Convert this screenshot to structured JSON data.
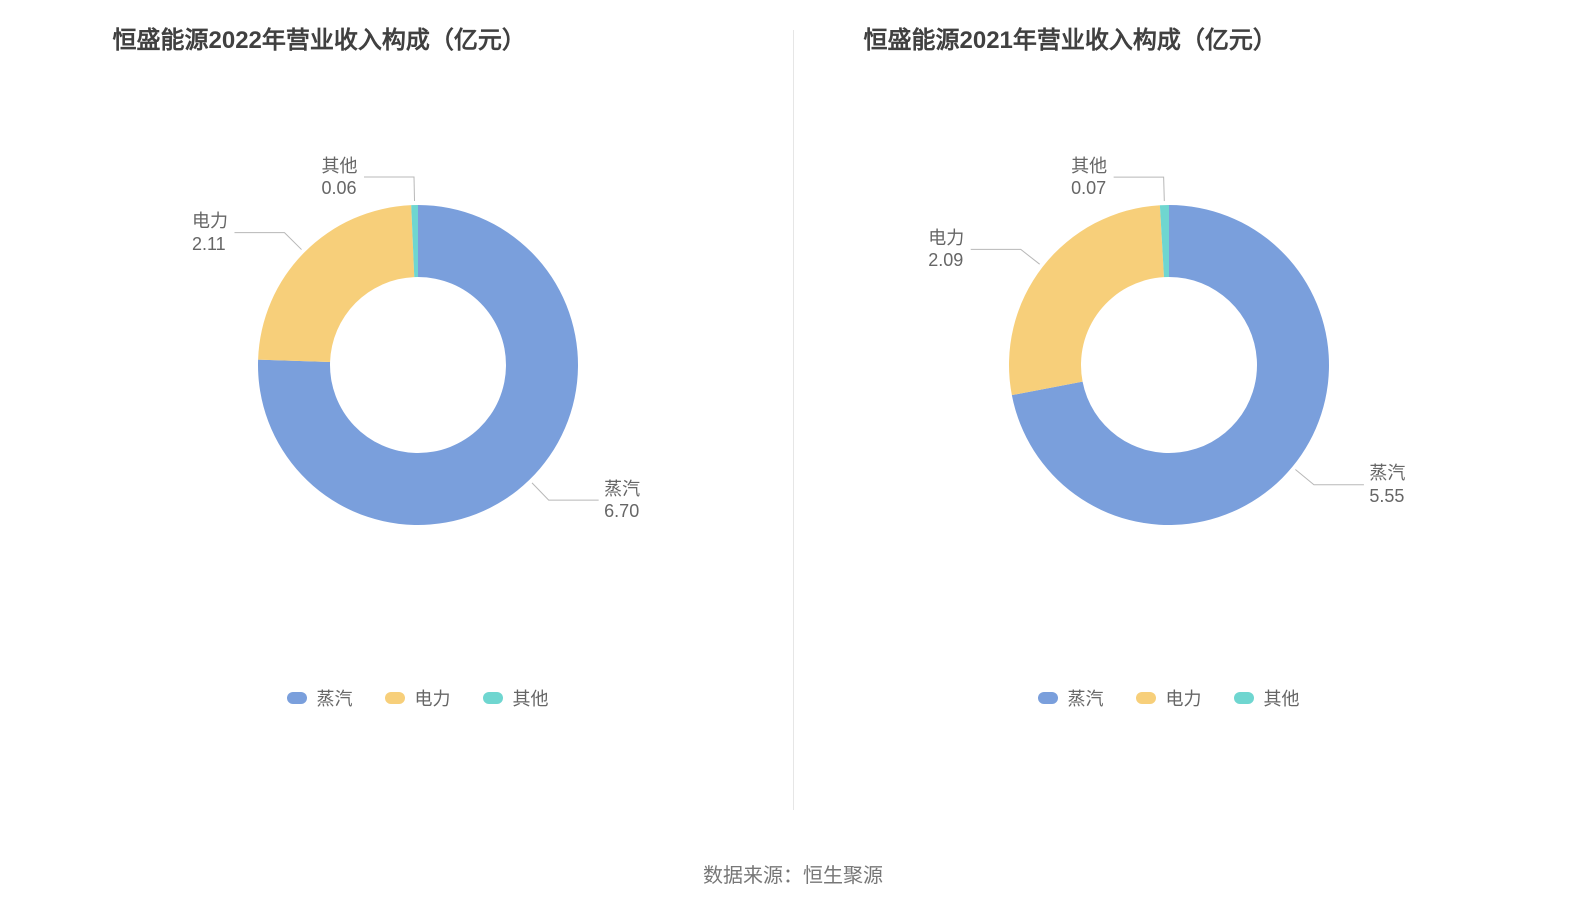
{
  "source_label": "数据来源：恒生聚源",
  "divider_color": "#e6e6e6",
  "title_color": "#404040",
  "label_color": "#666666",
  "background_color": "#ffffff",
  "leader_color": "#b8b8b8",
  "charts": [
    {
      "title": "恒盛能源2022年营业收入构成（亿元）",
      "type": "donut",
      "outer_radius": 160,
      "inner_radius": 88,
      "start_angle_deg": 90,
      "direction": "clockwise",
      "slices": [
        {
          "name": "蒸汽",
          "value": 6.7,
          "value_text": "6.70",
          "color": "#7a9fdc"
        },
        {
          "name": "电力",
          "value": 2.11,
          "value_text": "2.11",
          "color": "#f7cf7a"
        },
        {
          "name": "其他",
          "value": 0.06,
          "value_text": "0.06",
          "color": "#6fd6d0"
        }
      ],
      "legend": [
        {
          "label": "蒸汽",
          "color": "#7a9fdc"
        },
        {
          "label": "电力",
          "color": "#f7cf7a"
        },
        {
          "label": "其他",
          "color": "#6fd6d0"
        }
      ]
    },
    {
      "title": "恒盛能源2021年营业收入构成（亿元）",
      "type": "donut",
      "outer_radius": 160,
      "inner_radius": 88,
      "start_angle_deg": 90,
      "direction": "clockwise",
      "slices": [
        {
          "name": "蒸汽",
          "value": 5.55,
          "value_text": "5.55",
          "color": "#7a9fdc"
        },
        {
          "name": "电力",
          "value": 2.09,
          "value_text": "2.09",
          "color": "#f7cf7a"
        },
        {
          "name": "其他",
          "value": 0.07,
          "value_text": "0.07",
          "color": "#6fd6d0"
        }
      ],
      "legend": [
        {
          "label": "蒸汽",
          "color": "#7a9fdc"
        },
        {
          "label": "电力",
          "color": "#f7cf7a"
        },
        {
          "label": "其他",
          "color": "#6fd6d0"
        }
      ]
    }
  ]
}
